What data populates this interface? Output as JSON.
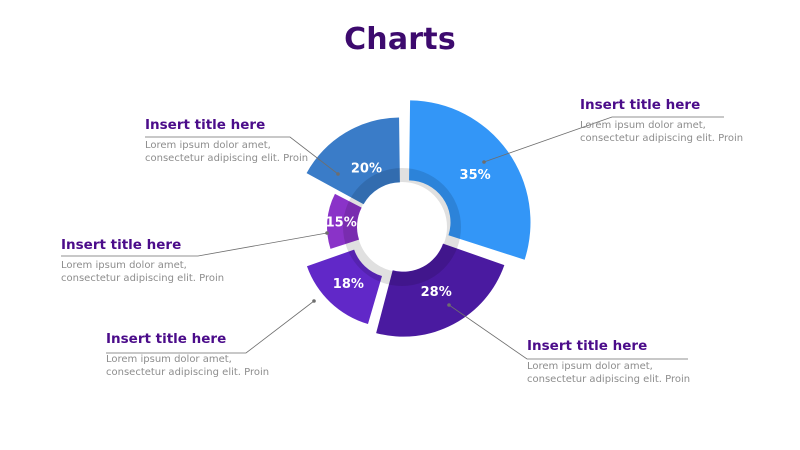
{
  "page": {
    "title": "Charts"
  },
  "chart_data": {
    "type": "pie",
    "variant": "exploded-donut",
    "categories": [
      "Insert title here",
      "Insert title here",
      "Insert title here",
      "Insert title here",
      "Insert title here"
    ],
    "values": [
      35,
      28,
      18,
      15,
      20
    ],
    "labels": [
      "35%",
      "28%",
      "18%",
      "15%",
      "20%"
    ],
    "colors": [
      "#3396f7",
      "#4a1aa0",
      "#6128c8",
      "#8a33c8",
      "#3a7cc8"
    ]
  },
  "callouts": [
    {
      "title": "Insert title here",
      "text": "Lorem ipsum dolor amet, consectetur adipiscing elit. Proin"
    },
    {
      "title": "Insert title here",
      "text": "Lorem ipsum dolor amet, consectetur adipiscing elit. Proin"
    },
    {
      "title": "Insert title here",
      "text": "Lorem ipsum dolor amet, consectetur adipiscing elit. Proin"
    },
    {
      "title": "Insert title here",
      "text": "Lorem ipsum dolor amet, consectetur adipiscing elit. Proin"
    },
    {
      "title": "Insert title here",
      "text": "Lorem ipsum dolor amet, consectetur adipiscing elit. Proin"
    }
  ],
  "colors": {
    "title": "#3d0a6e",
    "callout_title": "#4b0c8a",
    "callout_text": "#8d8d8d",
    "leader_line": "#6e6e6e"
  }
}
